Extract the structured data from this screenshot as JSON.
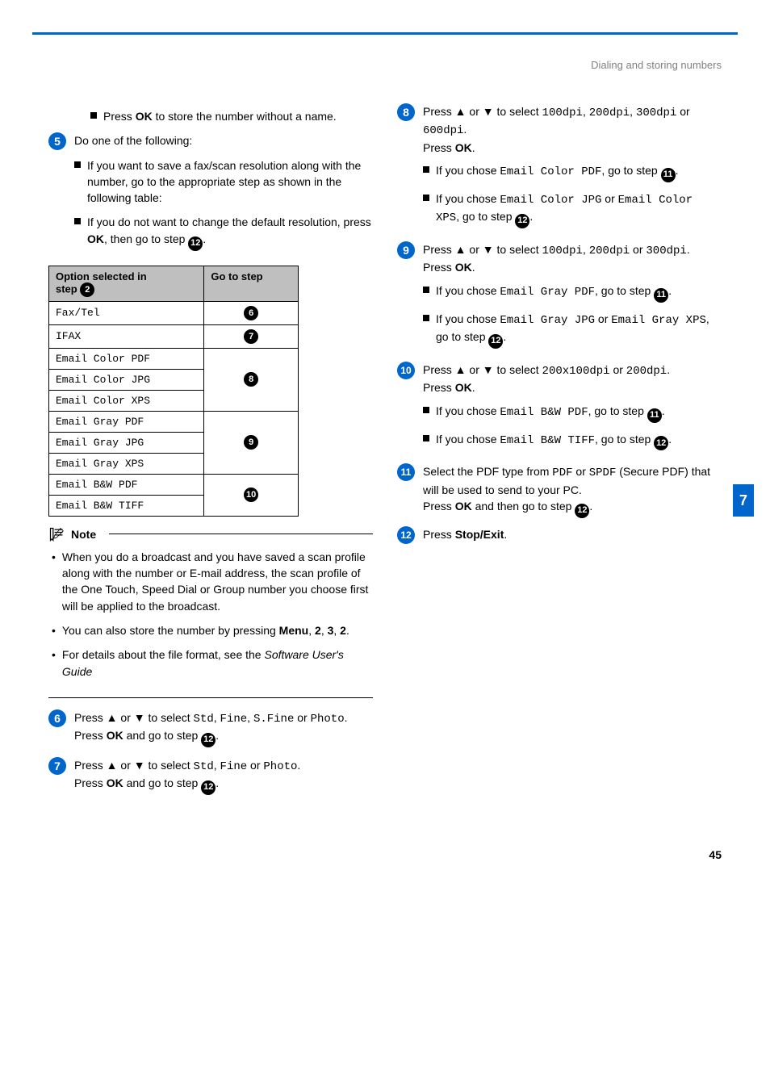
{
  "header": {
    "section_title": "Dialing and storing numbers"
  },
  "side_tab": "7",
  "page_number": "45",
  "left": {
    "bullet_top": {
      "pre": "Press ",
      "ok": "OK",
      "post": " to store the number without a name."
    },
    "step5": {
      "num": "5",
      "intro": "Do one of the following:",
      "b1": "If you want to save a fax/scan resolution along with the number, go to the appropriate step as shown in the following table:",
      "b2_pre": "If you do not want to change the default resolution, press ",
      "b2_ok": "OK",
      "b2_mid": ", then go to step "
    },
    "table": {
      "h1_line1": "Option selected in",
      "h1_line2": "step ",
      "h1_badge": "2",
      "h2": "Go to step",
      "rows": [
        {
          "label": "Fax/Tel",
          "badge": "6"
        },
        {
          "label": "IFAX",
          "badge": "7"
        },
        {
          "label": "Email Color PDF",
          "badge": "8"
        },
        {
          "label": "Email Color JPG",
          "badge": ""
        },
        {
          "label": "Email Color XPS",
          "badge": ""
        },
        {
          "label": "Email Gray PDF",
          "badge": "9"
        },
        {
          "label": "Email Gray JPG",
          "badge": ""
        },
        {
          "label": "Email Gray XPS",
          "badge": ""
        },
        {
          "label": "Email B&W PDF",
          "badge": "10"
        },
        {
          "label": "Email B&W TIFF",
          "badge": ""
        }
      ]
    },
    "note": {
      "title": "Note",
      "n1": "When you do a broadcast and you have saved a scan profile along with the number or E-mail address, the scan profile of the One Touch, Speed Dial or Group number you choose first will be applied to the broadcast.",
      "n2_pre": "You can also store the number by pressing ",
      "n2_menu": "Menu",
      "n2_c": ", ",
      "n2_2a": "2",
      "n2_3": "3",
      "n2_2b": "2",
      "n2_dot": ".",
      "n3_pre": "For details about the file format, see the ",
      "n3_ital": "Software User's Guide"
    },
    "step6": {
      "num": "6",
      "pre": "Press ▲ or ▼ to select ",
      "v1": "Std",
      "sep1": ", ",
      "v2": "Fine",
      "sep2": ", ",
      "v3": "S.Fine",
      "or": " or ",
      "v4": "Photo",
      "dot": ".",
      "line2_pre": "Press ",
      "ok": "OK",
      "line2_mid": " and go to step ",
      "badge": "12",
      "line2_end": "."
    },
    "step7": {
      "num": "7",
      "pre": "Press ▲ or ▼ to select ",
      "v1": "Std",
      "sep1": ", ",
      "v2": "Fine",
      "or": " or ",
      "v3": "Photo",
      "dot": ".",
      "line2_pre": "Press ",
      "ok": "OK",
      "line2_mid": " and go to step ",
      "badge": "12",
      "line2_end": "."
    }
  },
  "right": {
    "step8": {
      "num": "8",
      "pre": "Press ▲ or ▼ to select ",
      "v1": "100dpi",
      "c1": ", ",
      "v2": "200dpi",
      "c2": ", ",
      "v3": "300dpi",
      "or": " or ",
      "v4": "600dpi",
      "dot": ".",
      "press": "Press ",
      "ok": "OK",
      "dot2": ".",
      "b1_pre": "If you chose ",
      "b1_v": "Email Color PDF",
      "b1_mid": ", go to step ",
      "b1_badge": "11",
      "b1_end": ".",
      "b2_pre": "If you chose ",
      "b2_v1": "Email Color JPG",
      "b2_or": " or ",
      "b2_v2": "Email Color XPS",
      "b2_mid": ", go to step ",
      "b2_badge": "12",
      "b2_end": "."
    },
    "step9": {
      "num": "9",
      "pre": "Press ▲ or ▼ to select ",
      "v1": "100dpi",
      "c1": ", ",
      "v2": "200dpi",
      "or": " or ",
      "v3": "300dpi",
      "dot": ".",
      "press": "Press ",
      "ok": "OK",
      "dot2": ".",
      "b1_pre": "If you chose  ",
      "b1_v": "Email Gray PDF",
      "b1_mid": ", go to step ",
      "b1_badge": "11",
      "b1_end": ".",
      "b2_pre": "If you chose ",
      "b2_v1": "Email Gray JPG",
      "b2_or": " or ",
      "b2_v2": "Email Gray XPS",
      "b2_mid": ", go to step ",
      "b2_badge": "12",
      "b2_end": "."
    },
    "step10": {
      "num": "10",
      "pre": "Press ▲ or ▼ to select ",
      "v1": "200x100dpi",
      "or": " or ",
      "v2": "200dpi",
      "dot": ".",
      "press": "Press ",
      "ok": "OK",
      "dot2": ".",
      "b1_pre": "If you chose ",
      "b1_v": "Email B&W PDF",
      "b1_mid": ", go to step ",
      "b1_badge": "11",
      "b1_end": ".",
      "b2_pre": "If you chose ",
      "b2_v": "Email B&W TIFF",
      "b2_mid": ", go to step ",
      "b2_badge": "12",
      "b2_end": "."
    },
    "step11": {
      "num": "11",
      "l1_pre": "Select the PDF type from ",
      "l1_v1": "PDF",
      "l1_or": " or ",
      "l1_v2": "SPDF",
      "l1_post": " (Secure PDF) that will be used to send to your PC.",
      "l2_pre": "Press ",
      "ok": "OK",
      "l2_mid": " and then go to step ",
      "badge": "12",
      "l2_end": "."
    },
    "step12": {
      "num": "12",
      "pre": "Press ",
      "btn": "Stop/Exit",
      "dot": "."
    }
  }
}
